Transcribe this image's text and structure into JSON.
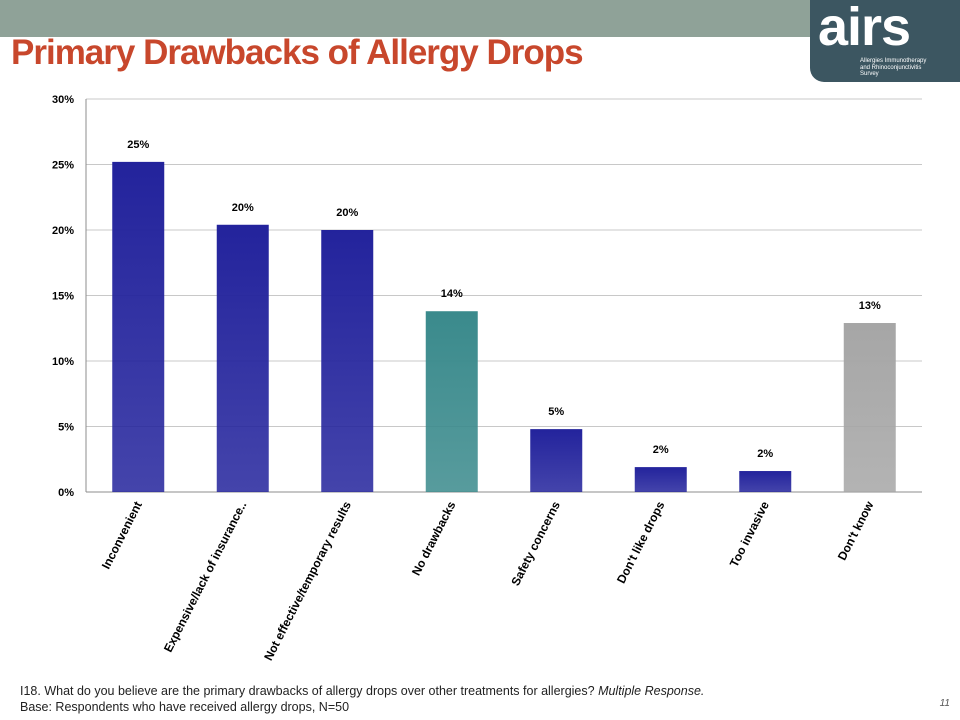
{
  "header": {
    "title": "Primary Drawbacks of Allergy Drops",
    "logo_text": "airs",
    "logo_subtitle": "Allergies Immunotherapy\nand Rhinoconjunctivitis\nSurvey"
  },
  "colors": {
    "accent_bar": "#8fa298",
    "title": "#c8472c",
    "bar_blue": "#23239c",
    "bar_teal": "#3a8a8c",
    "bar_gray": "#a6a6a6"
  },
  "chart_data": {
    "type": "bar",
    "categories": [
      "Inconvenient",
      "Expensive/lack of insurance..",
      "Not effective/temporary results",
      "No drawbacks",
      "Safety concerns",
      "Don't like drops",
      "Too invasive",
      "Don't know"
    ],
    "values": [
      25.2,
      20.4,
      20.0,
      13.8,
      4.8,
      1.9,
      1.6,
      12.9
    ],
    "data_labels": [
      "25%",
      "20%",
      "20%",
      "14%",
      "5%",
      "2%",
      "2%",
      "13%"
    ],
    "bar_colors": [
      "#23239c",
      "#23239c",
      "#23239c",
      "#3a8a8c",
      "#23239c",
      "#23239c",
      "#23239c",
      "#a6a6a6"
    ],
    "ylim": [
      0,
      30
    ],
    "yticks": [
      0,
      5,
      10,
      15,
      20,
      25,
      30
    ],
    "ytick_labels": [
      "0%",
      "5%",
      "10%",
      "15%",
      "20%",
      "25%",
      "30%"
    ],
    "grid": true,
    "legend": "none"
  },
  "footer": {
    "question": "I18. What do you believe are the primary drawbacks of allergy drops over other treatments for allergies? ",
    "question_note": "Multiple Response.",
    "base": "Base: Respondents who have received allergy drops, N=50",
    "page_number": "11"
  }
}
